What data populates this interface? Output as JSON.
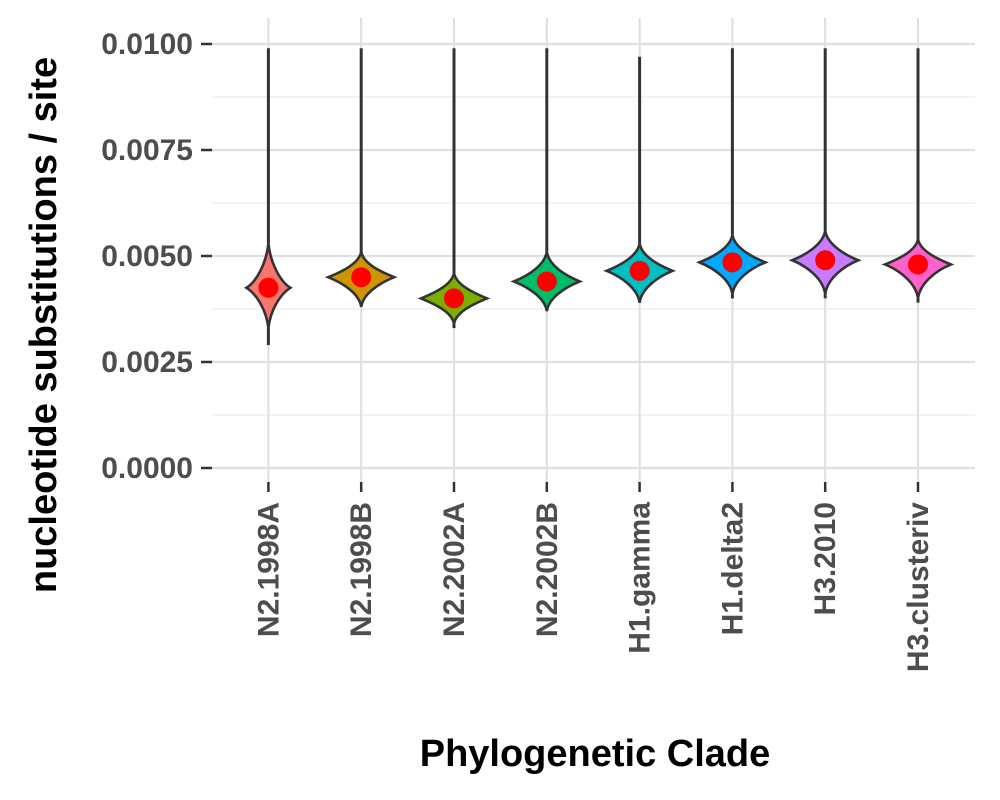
{
  "chart_data": {
    "type": "violin",
    "xlabel": "Phylogenetic Clade",
    "ylabel": "nucleotide substitutions / site",
    "ylim": [
      0,
      0.0105
    ],
    "y_ticks": [
      0.0,
      0.0025,
      0.005,
      0.0075,
      0.01
    ],
    "y_tick_labels": [
      "0.0000",
      "0.0025",
      "0.0050",
      "0.0075",
      "0.0100"
    ],
    "grid": true,
    "legend": "none",
    "categories": [
      "N2.1998A",
      "N2.1998B",
      "N2.2002A",
      "N2.2002B",
      "H1.gamma",
      "H1.delta2",
      "H3.2010",
      "H3.clusteriv"
    ],
    "colors": [
      "#F8766D",
      "#CD9600",
      "#7CAE00",
      "#00BE67",
      "#00BFC4",
      "#00A9FF",
      "#C77CFF",
      "#FF61CC"
    ],
    "mean_marker_color": "#FF0000",
    "series": [
      {
        "clade": "N2.1998A",
        "mean": 0.00425,
        "min": 0.0029,
        "max": 0.0099,
        "body_low": 0.0033,
        "body_high": 0.0053
      },
      {
        "clade": "N2.1998B",
        "mean": 0.0045,
        "min": 0.0038,
        "max": 0.0099,
        "body_low": 0.0038,
        "body_high": 0.0051
      },
      {
        "clade": "N2.2002A",
        "mean": 0.004,
        "min": 0.0033,
        "max": 0.0099,
        "body_low": 0.0034,
        "body_high": 0.0046
      },
      {
        "clade": "N2.2002B",
        "mean": 0.0044,
        "min": 0.0037,
        "max": 0.0099,
        "body_low": 0.0037,
        "body_high": 0.0051
      },
      {
        "clade": "H1.gamma",
        "mean": 0.00465,
        "min": 0.0039,
        "max": 0.0097,
        "body_low": 0.0039,
        "body_high": 0.0053
      },
      {
        "clade": "H1.delta2",
        "mean": 0.00485,
        "min": 0.004,
        "max": 0.0099,
        "body_low": 0.0041,
        "body_high": 0.0055
      },
      {
        "clade": "H3.2010",
        "mean": 0.0049,
        "min": 0.004,
        "max": 0.0099,
        "body_low": 0.0041,
        "body_high": 0.0056
      },
      {
        "clade": "H3.clusteriv",
        "mean": 0.0048,
        "min": 0.0039,
        "max": 0.0099,
        "body_low": 0.004,
        "body_high": 0.0054
      }
    ]
  }
}
